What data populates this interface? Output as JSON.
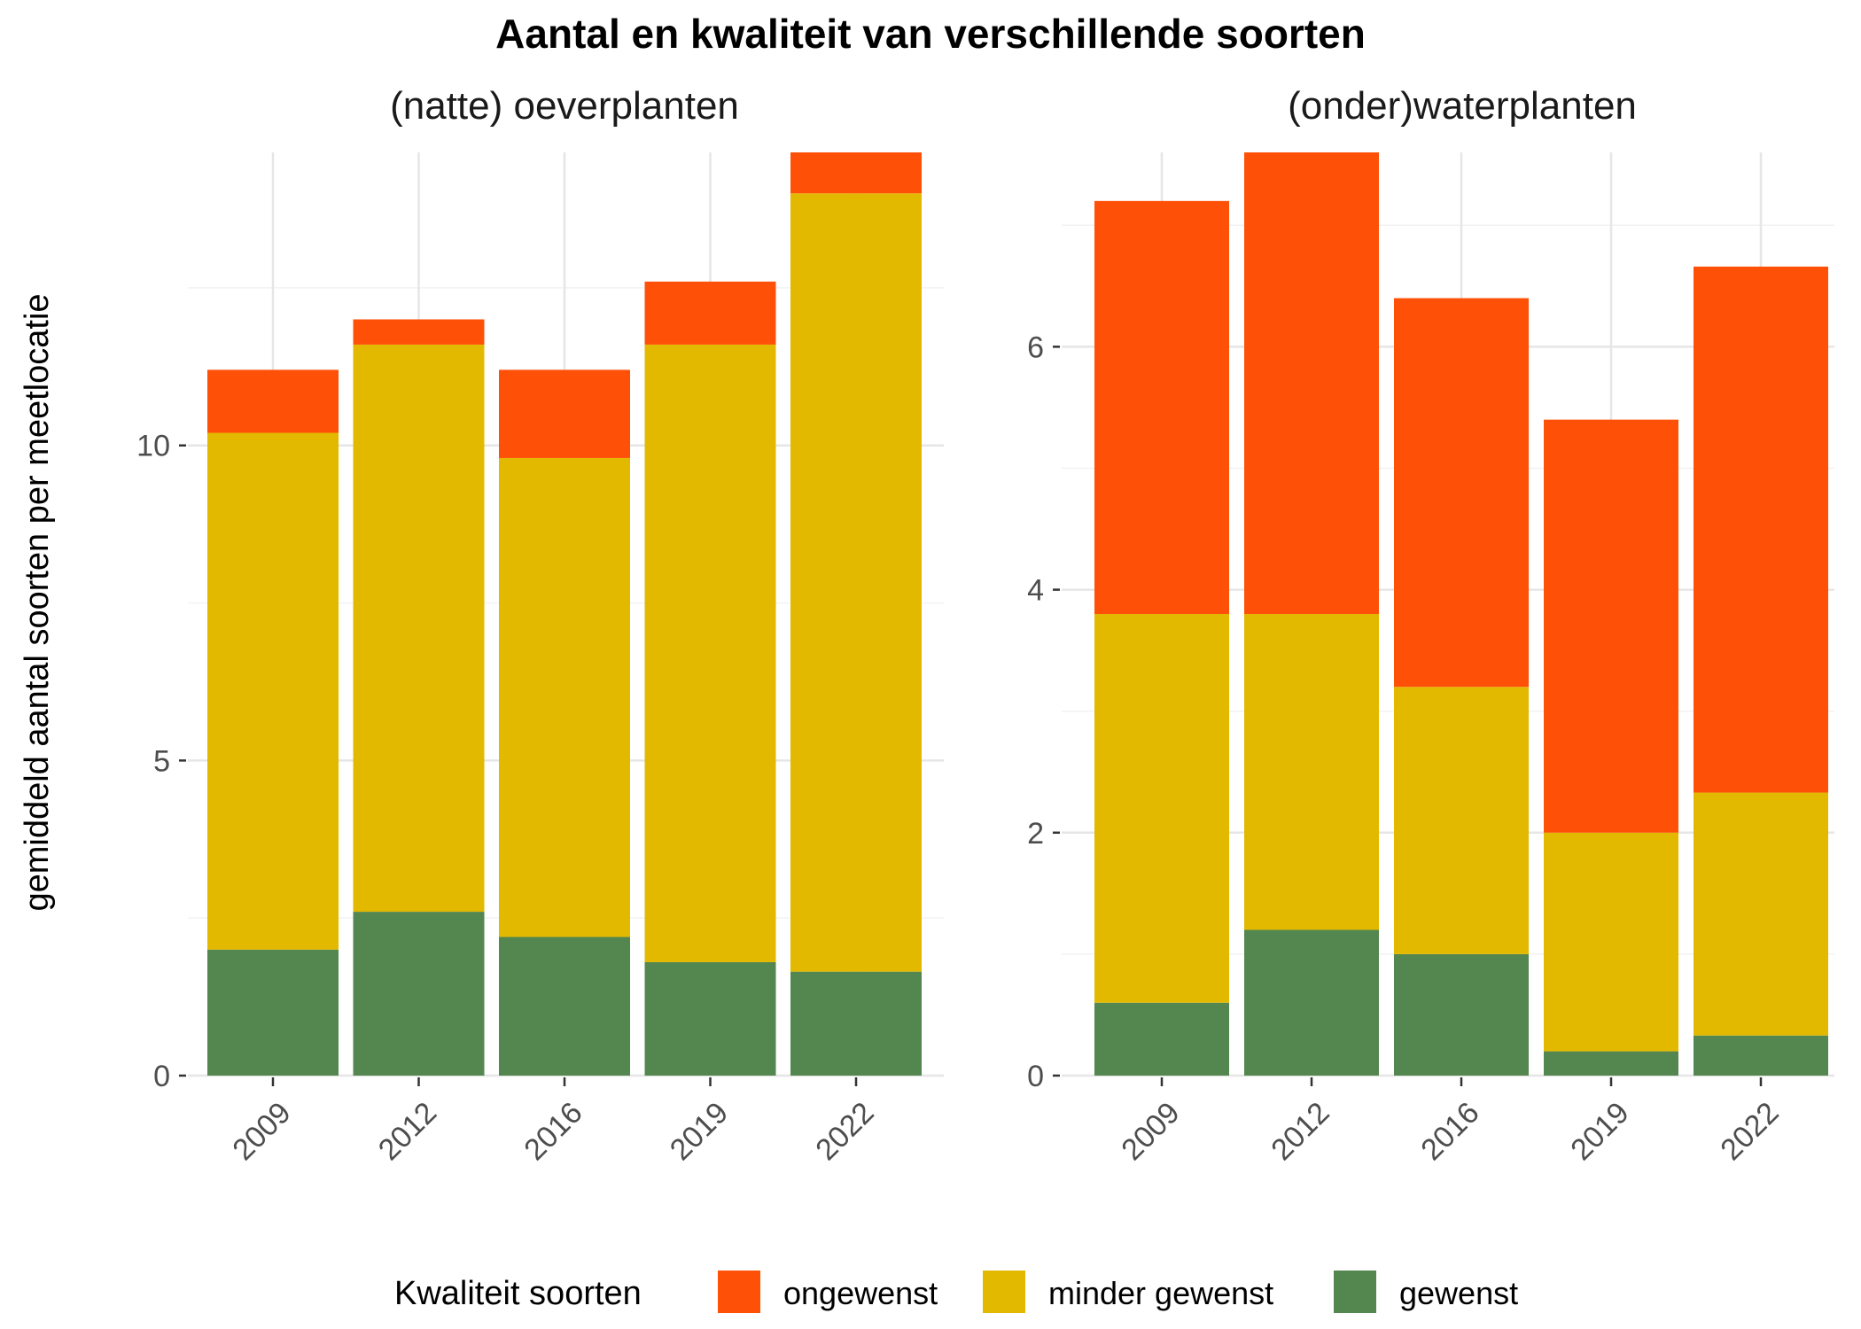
{
  "title": "Aantal en kwaliteit van verschillende soorten",
  "ylabel": "gemiddeld aantal soorten per meetlocatie",
  "legend": {
    "title": "Kwaliteit soorten",
    "position": "bottom",
    "items": [
      {
        "label": "ongewenst",
        "color": "#FF5008"
      },
      {
        "label": "minder gewenst",
        "color": "#E3B900"
      },
      {
        "label": "gewenst",
        "color": "#53874F"
      }
    ]
  },
  "chart_data": [
    {
      "type": "bar",
      "stacked": true,
      "title": "(natte) oeverplanten",
      "categories": [
        "2009",
        "2012",
        "2016",
        "2019",
        "2022"
      ],
      "ylim": [
        0,
        14.65
      ],
      "yticks": [
        0,
        5,
        10
      ],
      "yticklabels": [
        "0",
        "5",
        "10"
      ],
      "grid": true,
      "series": [
        {
          "name": "gewenst",
          "color": "#53874F",
          "values": [
            2.0,
            2.6,
            2.2,
            1.8,
            1.65
          ]
        },
        {
          "name": "minder gewenst",
          "color": "#E3B900",
          "values": [
            8.2,
            9.0,
            7.6,
            9.8,
            12.35
          ]
        },
        {
          "name": "ongewenst",
          "color": "#FF5008",
          "values": [
            1.0,
            0.4,
            1.4,
            1.0,
            0.65
          ]
        }
      ]
    },
    {
      "type": "bar",
      "stacked": true,
      "title": "(onder)waterplanten",
      "categories": [
        "2009",
        "2012",
        "2016",
        "2019",
        "2022"
      ],
      "ylim": [
        0,
        7.6
      ],
      "yticks": [
        0,
        2,
        4,
        6
      ],
      "yticklabels": [
        "0",
        "2",
        "4",
        "6"
      ],
      "grid": true,
      "series": [
        {
          "name": "gewenst",
          "color": "#53874F",
          "values": [
            0.6,
            1.2,
            1.0,
            0.2,
            0.33
          ]
        },
        {
          "name": "minder gewenst",
          "color": "#E3B900",
          "values": [
            3.2,
            2.6,
            2.2,
            1.8,
            2.0
          ]
        },
        {
          "name": "ongewenst",
          "color": "#FF5008",
          "values": [
            3.4,
            3.8,
            3.2,
            3.4,
            4.33
          ]
        }
      ]
    }
  ]
}
